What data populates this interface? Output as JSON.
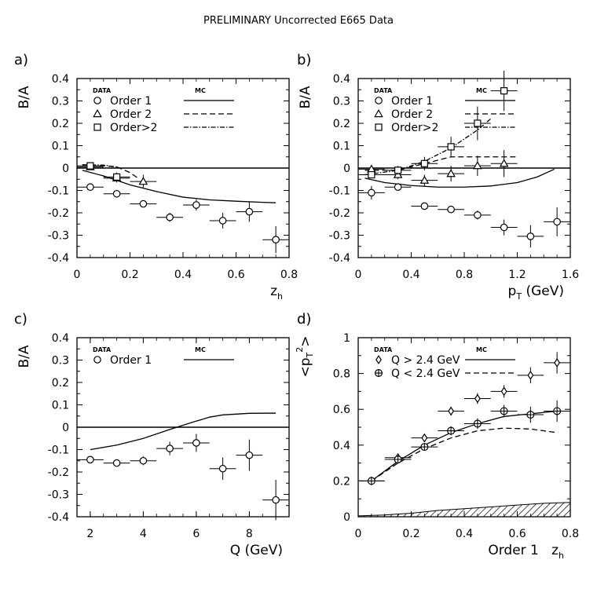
{
  "figure": {
    "title": "PRELIMINARY Uncorrected E665 Data"
  },
  "chart_data": [
    {
      "panel_label": "a)",
      "type": "scatter",
      "xlabel": "z",
      "xlabel_sub": "h",
      "ylabel": "B/A",
      "xlim": [
        0,
        0.8
      ],
      "ylim": [
        -0.4,
        0.4
      ],
      "xticks": [
        0,
        0.2,
        0.4,
        0.6,
        0.8
      ],
      "xtick_labels": [
        "0",
        "0.2",
        "0.4",
        "0.6",
        "0.8"
      ],
      "yticks": [
        -0.4,
        -0.3,
        -0.2,
        -0.1,
        0,
        0.1,
        0.2,
        0.3,
        0.4
      ],
      "ytick_labels": [
        "-0.4",
        "-0.3",
        "-0.2",
        "-0.1",
        "0",
        "0.1",
        "0.2",
        "0.3",
        "0.4"
      ],
      "zero_line": true,
      "legend": {
        "data_header": "DATA",
        "mc_header": "MC"
      },
      "series": [
        {
          "name": "Order 1",
          "marker": "circle",
          "mc_style": "solid",
          "points": [
            [
              0.05,
              -0.085
            ],
            [
              0.15,
              -0.115
            ],
            [
              0.25,
              -0.16
            ],
            [
              0.35,
              -0.22
            ],
            [
              0.45,
              -0.165
            ],
            [
              0.55,
              -0.235
            ],
            [
              0.65,
              -0.195
            ],
            [
              0.75,
              -0.32
            ]
          ],
          "xerr": 0.05,
          "yerr": [
            0.01,
            0.01,
            0.015,
            0.02,
            0.025,
            0.035,
            0.045,
            0.06
          ],
          "mc": [
            [
              0.02,
              -0.01
            ],
            [
              0.1,
              -0.035
            ],
            [
              0.2,
              -0.075
            ],
            [
              0.3,
              -0.105
            ],
            [
              0.4,
              -0.13
            ],
            [
              0.5,
              -0.142
            ],
            [
              0.6,
              -0.148
            ],
            [
              0.7,
              -0.153
            ],
            [
              0.75,
              -0.155
            ]
          ]
        },
        {
          "name": "Order 2",
          "marker": "triangle",
          "mc_style": "dashed",
          "points": [
            [
              0.05,
              0.005
            ],
            [
              0.15,
              -0.045
            ],
            [
              0.25,
              -0.06
            ]
          ],
          "xerr": 0.05,
          "yerr": [
            0.01,
            0.02,
            0.03
          ],
          "mc": [
            [
              0.02,
              0.012
            ],
            [
              0.1,
              0.01
            ],
            [
              0.15,
              0.005
            ],
            [
              0.2,
              -0.02
            ],
            [
              0.23,
              -0.045
            ]
          ]
        },
        {
          "name": "Order>2",
          "marker": "square",
          "mc_style": "dashdot",
          "points": [
            [
              0.05,
              0.01
            ],
            [
              0.15,
              -0.04
            ]
          ],
          "xerr": 0.05,
          "yerr": [
            0.01,
            0.02
          ],
          "mc": [
            [
              0.02,
              0.015
            ],
            [
              0.1,
              0.013
            ],
            [
              0.15,
              0.005
            ]
          ]
        }
      ]
    },
    {
      "panel_label": "b)",
      "type": "scatter",
      "xlabel": "p",
      "xlabel_sub": "T",
      "xlabel_suffix": " (GeV)",
      "ylabel": "B/A",
      "xlim": [
        0,
        1.6
      ],
      "ylim": [
        -0.4,
        0.4
      ],
      "xticks": [
        0,
        0.4,
        0.8,
        1.2,
        1.6
      ],
      "xtick_labels": [
        "0",
        "0.4",
        "0.8",
        "1.2",
        "1.6"
      ],
      "yticks": [
        -0.4,
        -0.3,
        -0.2,
        -0.1,
        0,
        0.1,
        0.2,
        0.3,
        0.4
      ],
      "ytick_labels": [
        "-0.4",
        "-0.3",
        "-0.2",
        "-0.1",
        "0",
        "0.1",
        "0.2",
        "0.3",
        "0.4"
      ],
      "zero_line": true,
      "legend": {
        "data_header": "DATA",
        "mc_header": "MC"
      },
      "series": [
        {
          "name": "Order 1",
          "marker": "circle",
          "mc_style": "solid",
          "points": [
            [
              0.1,
              -0.11
            ],
            [
              0.3,
              -0.085
            ],
            [
              0.5,
              -0.17
            ],
            [
              0.7,
              -0.185
            ],
            [
              0.9,
              -0.21
            ],
            [
              1.1,
              -0.265
            ],
            [
              1.3,
              -0.305
            ],
            [
              1.5,
              -0.24
            ]
          ],
          "xerr": 0.1,
          "yerr": [
            0.03,
            0.015,
            0.01,
            0.015,
            0.02,
            0.035,
            0.05,
            0.065
          ],
          "mc": [
            [
              0.05,
              -0.045
            ],
            [
              0.2,
              -0.065
            ],
            [
              0.4,
              -0.078
            ],
            [
              0.6,
              -0.085
            ],
            [
              0.8,
              -0.085
            ],
            [
              1.0,
              -0.08
            ],
            [
              1.2,
              -0.065
            ],
            [
              1.35,
              -0.04
            ],
            [
              1.48,
              -0.005
            ]
          ]
        },
        {
          "name": "Order 2",
          "marker": "triangle",
          "mc_style": "dashed",
          "points": [
            [
              0.1,
              -0.005
            ],
            [
              0.3,
              -0.03
            ],
            [
              0.5,
              -0.055
            ],
            [
              0.7,
              -0.025
            ],
            [
              0.9,
              0.01
            ],
            [
              1.1,
              0.02
            ]
          ],
          "xerr": 0.1,
          "yerr": [
            0.015,
            0.02,
            0.025,
            0.035,
            0.045,
            0.06
          ],
          "mc": [
            [
              0.05,
              -0.01
            ],
            [
              0.3,
              -0.01
            ],
            [
              0.5,
              0.02
            ],
            [
              0.7,
              0.05
            ],
            [
              1.2,
              0.05
            ]
          ]
        },
        {
          "name": "Order>2",
          "marker": "square",
          "mc_style": "dashdot",
          "points": [
            [
              0.1,
              -0.03
            ],
            [
              0.3,
              -0.01
            ],
            [
              0.5,
              0.02
            ],
            [
              0.7,
              0.095
            ],
            [
              0.9,
              0.2
            ],
            [
              1.1,
              0.345
            ]
          ],
          "xerr": 0.1,
          "yerr": [
            0.015,
            0.02,
            0.03,
            0.045,
            0.075,
            0.09
          ],
          "mc": [
            [
              0.05,
              -0.03
            ],
            [
              0.3,
              -0.01
            ],
            [
              0.5,
              0.03
            ],
            [
              0.7,
              0.09
            ],
            [
              0.9,
              0.17
            ],
            [
              1.0,
              0.22
            ]
          ]
        }
      ]
    },
    {
      "panel_label": "c)",
      "type": "scatter",
      "xlabel": "Q  (GeV)",
      "ylabel": "B/A",
      "xlim": [
        1.5,
        9.5
      ],
      "ylim": [
        -0.4,
        0.4
      ],
      "xticks": [
        2,
        4,
        6,
        8
      ],
      "xtick_labels": [
        "2",
        "4",
        "6",
        "8"
      ],
      "yticks": [
        -0.4,
        -0.3,
        -0.2,
        -0.1,
        0,
        0.1,
        0.2,
        0.3,
        0.4
      ],
      "ytick_labels": [
        "-0.4",
        "-0.3",
        "-0.2",
        "-0.1",
        "0",
        "0.1",
        "0.2",
        "0.3",
        "0.4"
      ],
      "zero_line": true,
      "legend": {
        "data_header": "DATA",
        "mc_header": "MC"
      },
      "series": [
        {
          "name": "Order 1",
          "marker": "circle",
          "mc_style": "solid",
          "points": [
            [
              2,
              -0.145
            ],
            [
              3,
              -0.16
            ],
            [
              4,
              -0.15
            ],
            [
              5,
              -0.095
            ],
            [
              6,
              -0.07
            ],
            [
              7,
              -0.185
            ],
            [
              8,
              -0.125
            ],
            [
              9,
              -0.325
            ]
          ],
          "xerr": 0.5,
          "yerr": [
            0.01,
            0.01,
            0.02,
            0.03,
            0.04,
            0.05,
            0.07,
            0.09
          ],
          "mc": [
            [
              2,
              -0.1
            ],
            [
              3,
              -0.08
            ],
            [
              4,
              -0.05
            ],
            [
              5,
              -0.01
            ],
            [
              5.8,
              0.02
            ],
            [
              6.5,
              0.045
            ],
            [
              7,
              0.055
            ],
            [
              8,
              0.062
            ],
            [
              9,
              0.063
            ]
          ]
        }
      ]
    },
    {
      "panel_label": "d)",
      "type": "scatter",
      "xlabel": "z",
      "xlabel_sub": "h",
      "xlabel_prefix": "Order 1",
      "ylabel": "<p",
      "ylabel_sub": "T",
      "ylabel_sup": "2",
      "ylabel_suffix": ">",
      "xlim": [
        0,
        0.8
      ],
      "ylim": [
        0,
        1
      ],
      "xticks": [
        0,
        0.2,
        0.4,
        0.6,
        0.8
      ],
      "xtick_labels": [
        "0",
        "0.2",
        "0.4",
        "0.6",
        "0.8"
      ],
      "yticks": [
        0,
        0.2,
        0.4,
        0.6,
        0.8,
        1
      ],
      "ytick_labels": [
        "0",
        "0.2",
        "0.4",
        "0.6",
        "0.8",
        "1"
      ],
      "zero_line": false,
      "legend": {
        "data_header": "DATA",
        "mc_header": "MC"
      },
      "series": [
        {
          "name": "Q > 2.4 GeV",
          "marker": "diamond",
          "mc_style": "solid",
          "points": [
            [
              0.05,
              0.2
            ],
            [
              0.15,
              0.33
            ],
            [
              0.25,
              0.44
            ],
            [
              0.35,
              0.59
            ],
            [
              0.45,
              0.66
            ],
            [
              0.55,
              0.7
            ],
            [
              0.65,
              0.79
            ],
            [
              0.75,
              0.86
            ]
          ],
          "xerr": 0.05,
          "yerr": [
            0.01,
            0.015,
            0.02,
            0.025,
            0.03,
            0.035,
            0.045,
            0.06
          ],
          "mc": [
            [
              0.05,
              0.2
            ],
            [
              0.15,
              0.31
            ],
            [
              0.25,
              0.4
            ],
            [
              0.35,
              0.47
            ],
            [
              0.45,
              0.52
            ],
            [
              0.55,
              0.56
            ],
            [
              0.65,
              0.575
            ],
            [
              0.75,
              0.59
            ]
          ]
        },
        {
          "name": "Q < 2.4 GeV",
          "marker": "cross-circle",
          "mc_style": "dashed",
          "points": [
            [
              0.05,
              0.2
            ],
            [
              0.15,
              0.32
            ],
            [
              0.25,
              0.39
            ],
            [
              0.35,
              0.48
            ],
            [
              0.45,
              0.52
            ],
            [
              0.55,
              0.59
            ],
            [
              0.65,
              0.57
            ],
            [
              0.75,
              0.59
            ]
          ],
          "xerr": 0.05,
          "yerr": [
            0.01,
            0.015,
            0.02,
            0.025,
            0.03,
            0.035,
            0.045,
            0.06
          ],
          "mc": [
            [
              0.05,
              0.2
            ],
            [
              0.15,
              0.3
            ],
            [
              0.25,
              0.38
            ],
            [
              0.35,
              0.44
            ],
            [
              0.45,
              0.48
            ],
            [
              0.55,
              0.495
            ],
            [
              0.65,
              0.49
            ],
            [
              0.75,
              0.47
            ]
          ]
        }
      ],
      "systematic_band": {
        "style": "hatched",
        "x": [
          0,
          0.1,
          0.2,
          0.3,
          0.4,
          0.5,
          0.6,
          0.7,
          0.8
        ],
        "y": [
          0.005,
          0.01,
          0.02,
          0.035,
          0.045,
          0.055,
          0.065,
          0.075,
          0.08
        ]
      }
    }
  ]
}
